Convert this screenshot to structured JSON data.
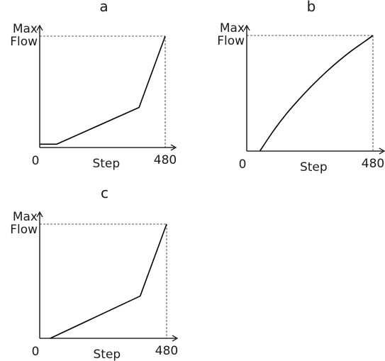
{
  "chart_data": [
    {
      "type": "line",
      "title": "a",
      "xlabel": "Step",
      "ylabel": "Max Flow",
      "ylabel_lines": [
        "Max",
        "Flow"
      ],
      "x_ticks": [
        "0",
        "480"
      ],
      "xlim": [
        0,
        480
      ],
      "ylim": [
        0,
        1
      ],
      "reference_lines": "dashed lines at Max Flow and x = 480",
      "series": [
        {
          "x": [
            0,
            65,
            380,
            480
          ],
          "y": [
            0.03,
            0.03,
            0.36,
            1.0
          ]
        }
      ]
    },
    {
      "type": "line",
      "title": "b",
      "xlabel": "Step",
      "ylabel": "Max Flow",
      "ylabel_lines": [
        "Max",
        "Flow"
      ],
      "x_ticks": [
        "0",
        "480"
      ],
      "xlim": [
        0,
        480
      ],
      "ylim": [
        0,
        1
      ],
      "reference_lines": "dashed lines at Max Flow and x = 480",
      "series": [
        {
          "x": [
            50,
            100,
            150,
            200,
            250,
            300,
            350,
            400,
            450,
            480
          ],
          "y": [
            0.0,
            0.17,
            0.32,
            0.45,
            0.57,
            0.68,
            0.78,
            0.87,
            0.95,
            1.0
          ]
        }
      ]
    },
    {
      "type": "line",
      "title": "c",
      "xlabel": "Step",
      "ylabel": "Max Flow",
      "ylabel_lines": [
        "Max",
        "Flow"
      ],
      "x_ticks": [
        "0",
        "480"
      ],
      "xlim": [
        0,
        480
      ],
      "ylim": [
        0,
        1
      ],
      "reference_lines": "dashed lines at Max Flow and x = 480",
      "series": [
        {
          "x": [
            40,
            380,
            480
          ],
          "y": [
            0.0,
            0.37,
            1.0
          ]
        }
      ]
    }
  ]
}
